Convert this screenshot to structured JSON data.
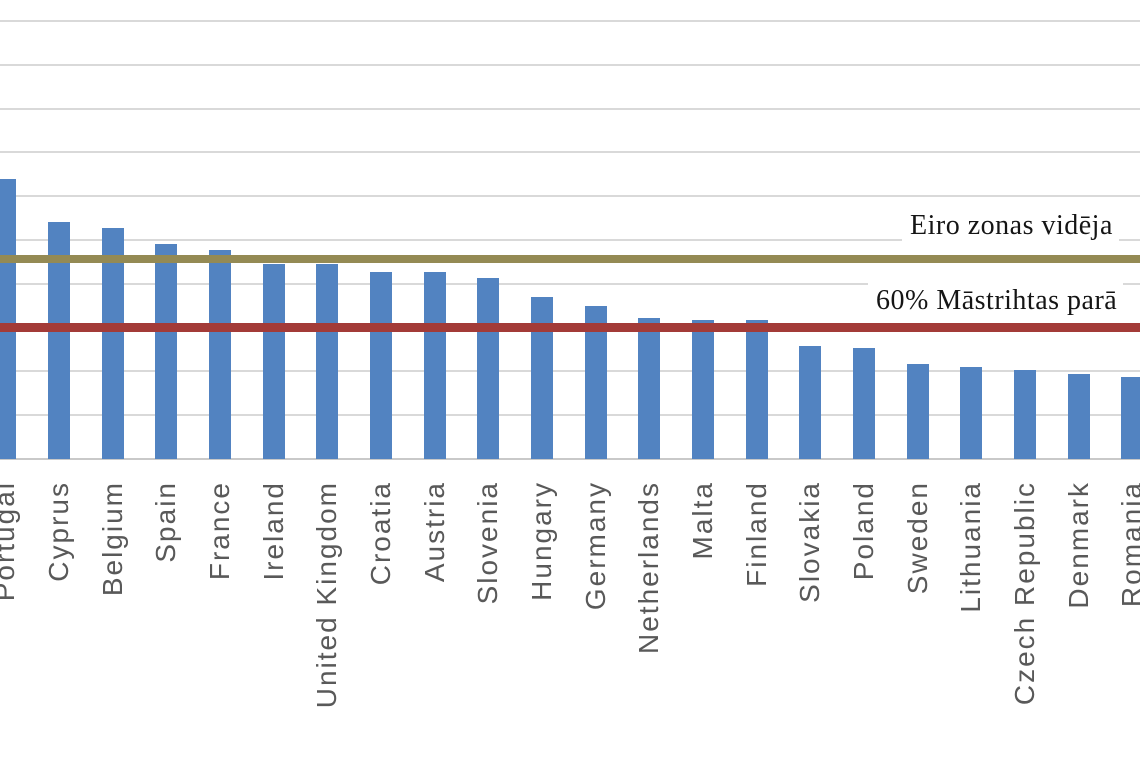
{
  "chart_data": {
    "type": "bar",
    "title": "",
    "xlabel": "",
    "ylabel": "",
    "note": "Chart is cropped: y-axis tick labels and first bars (left) and last bar label (right) are cut off at image edges; values in % of GDP estimated from gridlines",
    "categories": [
      "Portugal",
      "Cyprus",
      "Belgium",
      "Spain",
      "France",
      "Ireland",
      "United Kingdom",
      "Croatia",
      "Austria",
      "Slovenia",
      "Hungary",
      "Germany",
      "Netherlands",
      "Malta",
      "Finland",
      "Slovakia",
      "Poland",
      "Sweden",
      "Lithuania",
      "Czech Republic",
      "Denmark",
      "Romania"
    ],
    "values": [
      128,
      108,
      105.5,
      98,
      95.5,
      89,
      89,
      85.5,
      85.5,
      82.5,
      74,
      70,
      64.5,
      63.5,
      63.5,
      51.5,
      50.5,
      43.5,
      42,
      40.5,
      39,
      37.5
    ],
    "ylim": [
      0,
      200
    ],
    "grid_step": 20,
    "grid_on": true,
    "legend_position": "none",
    "reference_lines": [
      {
        "id": "eurozone-average",
        "label": "Eiro zonas vidēja",
        "value": 91.5,
        "color": "#948A54"
      },
      {
        "id": "maastricht-60",
        "label": "60% Māstrihtas parā",
        "value": 60,
        "color": "#A33B38"
      }
    ]
  },
  "style": {
    "bar_color": "#5283C1",
    "gridline_color": "#D9D9D9",
    "axis_color": "#C9C9C9",
    "label_color": "#595959",
    "annotation_color": "#151515",
    "background": "#FFFFFF"
  }
}
